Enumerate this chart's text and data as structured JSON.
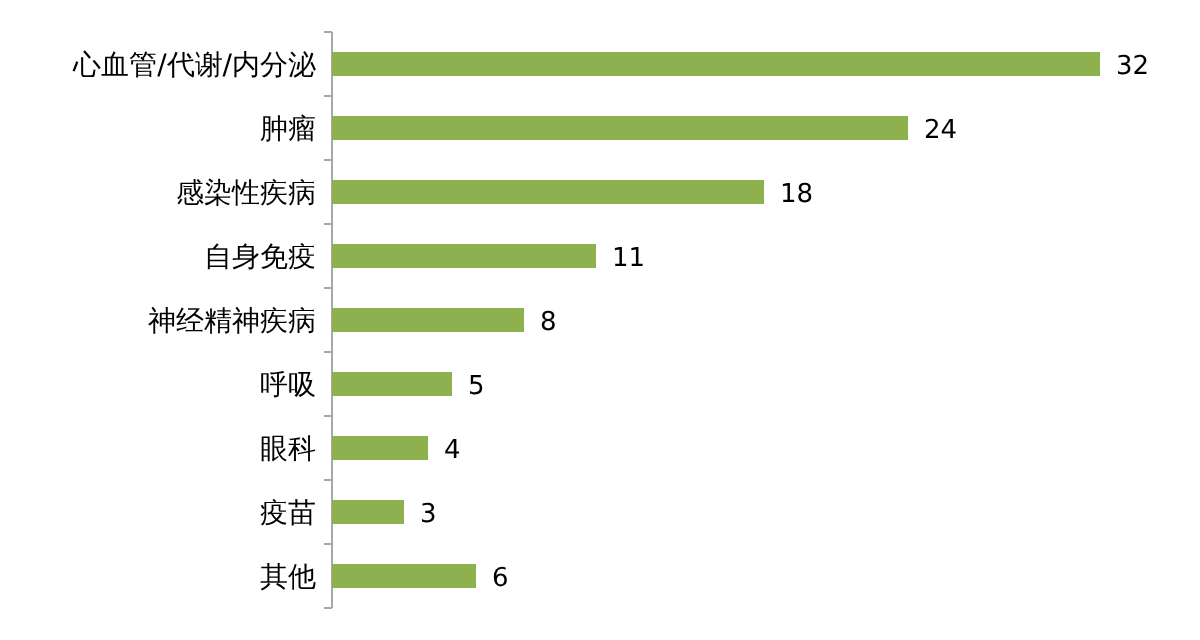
{
  "chart_data": {
    "type": "bar",
    "orientation": "horizontal",
    "categories": [
      "心血管/代谢/内分泌",
      "肿瘤",
      "感染性疾病",
      "自身免疫",
      "神经精神疾病",
      "呼吸",
      "眼科",
      "疫苗",
      "其他"
    ],
    "values": [
      32,
      24,
      18,
      11,
      8,
      5,
      4,
      3,
      6
    ],
    "color": "#8fb04e",
    "data_labels": true
  }
}
